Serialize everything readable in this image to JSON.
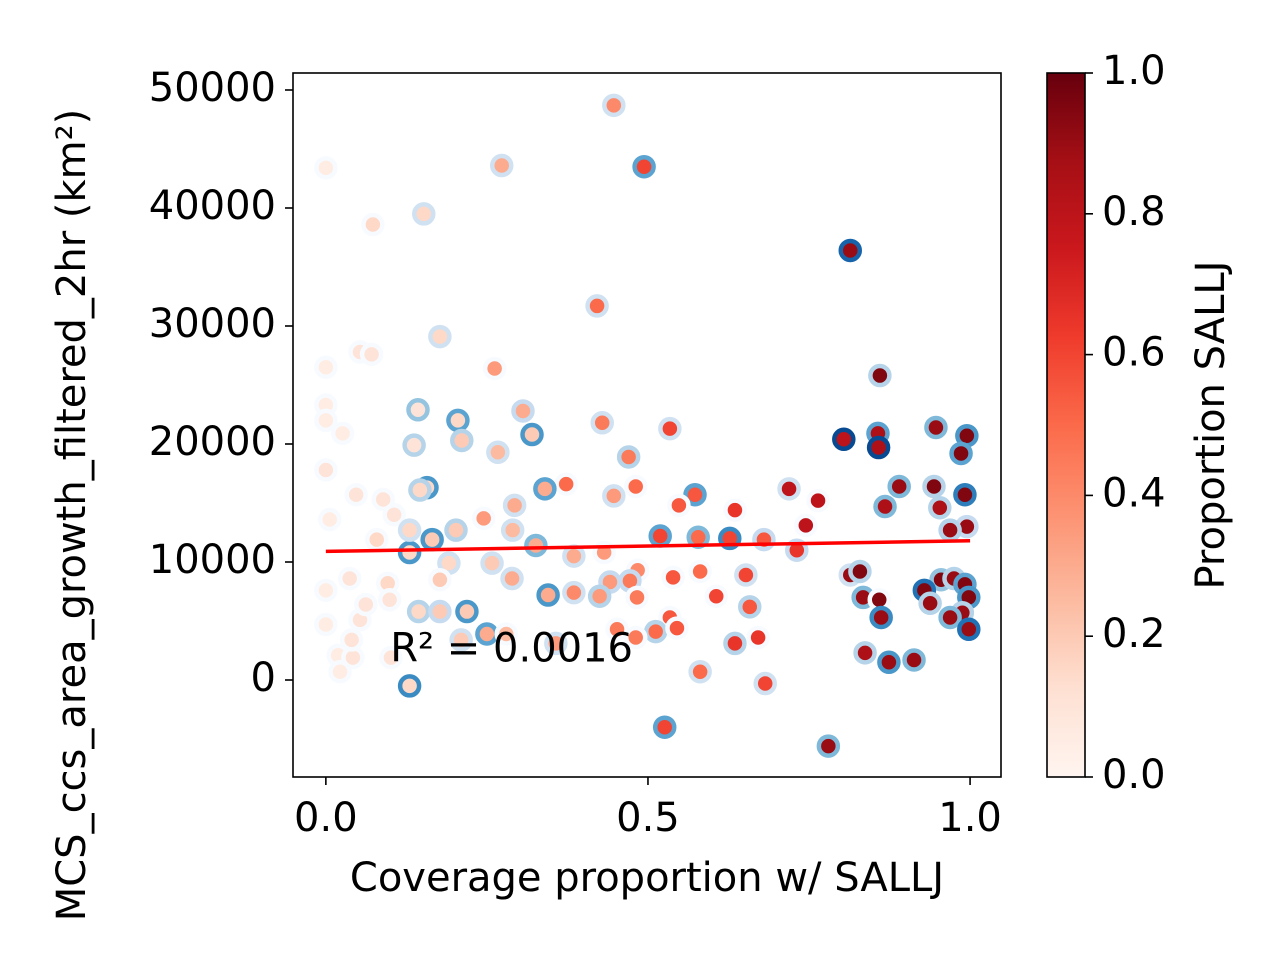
{
  "chart_data": {
    "type": "scatter",
    "x_label": "Coverage proportion w/ SALLJ",
    "y_label": "MCS_ccs_area_growth_filtered_2hr (km²)",
    "colorbar_label": "Proportion SALLJ",
    "annotation": "R² = 0.0016",
    "xlim": [
      -0.051,
      1.048
    ],
    "ylim": [
      -8220,
      51440
    ],
    "xticks": [
      {
        "value": 0,
        "label": "0.0"
      },
      0.5,
      {
        "value": 1,
        "label": "1.0"
      }
    ],
    "yticks": [
      0,
      10000,
      20000,
      30000,
      40000,
      50000
    ],
    "clim": [
      0,
      1
    ],
    "cticks": [
      {
        "value": 0,
        "label": "0.0"
      },
      0.2,
      0.4,
      0.6,
      0.8,
      {
        "value": 1,
        "label": "1.0"
      }
    ],
    "colormap": [
      "#fff5f0",
      "#fee0d2",
      "#fcbba1",
      "#fc9272",
      "#fb6a4a",
      "#ef3b2c",
      "#cb181d",
      "#a50f15",
      "#67000d"
    ],
    "edge_colormap": [
      "#f7fbff",
      "#deebf7",
      "#c6dbef",
      "#9ecae1",
      "#6baed6",
      "#4292c6",
      "#2171b5",
      "#08519c",
      "#08306b"
    ],
    "trend": {
      "x": [
        0,
        1
      ],
      "y": [
        10900,
        11800
      ],
      "color": "#ff0000"
    },
    "x": [
      0.447,
      0.494,
      0.273,
      0,
      0.152,
      0.073,
      0.814,
      0.421,
      0.177,
      0.053,
      0.071,
      0.262,
      0,
      0.86,
      0,
      0.143,
      0.306,
      0.205,
      0.429,
      0.947,
      0.534,
      0.32,
      0.995,
      0.857,
      0.804,
      0.211,
      0.137,
      0.858,
      0.986,
      0.267,
      0.47,
      0,
      0.373,
      0.719,
      0.89,
      0.157,
      0.481,
      0.34,
      0.944,
      0.992,
      0.573,
      0.447,
      0.764,
      0.953,
      0.868,
      0.293,
      0.548,
      0.635,
      0.245,
      0.745,
      0.995,
      0.969,
      0.29,
      0.519,
      0.627,
      0.578,
      0.165,
      0.68,
      0.326,
      0.731,
      0.13,
      0.385,
      0.432,
      0.191,
      0.258,
      0.484,
      0.581,
      0.814,
      0.652,
      0.829,
      0.289,
      0.539,
      0.441,
      0.472,
      0.955,
      0.975,
      0.992,
      0,
      0.929,
      0.345,
      0.385,
      0.425,
      0.606,
      0.834,
      0.998,
      0.859,
      0.938,
      0.483,
      0.144,
      0.177,
      0.219,
      0.658,
      0.534,
      0.988,
      0.862,
      0.969,
      0.452,
      0.512,
      0.545,
      0.998,
      0.25,
      0.481,
      0.28,
      0.635,
      0.671,
      0.21,
      0.357,
      0.837,
      0.874,
      0.913,
      0.019,
      0.101,
      0.581,
      0.682,
      0.13,
      0.526,
      0.78,
      0.053,
      0.042,
      0.022,
      0.006,
      0.047,
      0.089,
      0.106,
      0.079,
      0.037,
      0.062,
      0.096,
      0,
      0.026,
      0,
      0.177,
      0.202,
      0.13,
      0.099,
      0.04,
      0.146
    ],
    "y": [
      48700,
      43500,
      43600,
      43400,
      39500,
      38600,
      36400,
      31700,
      29100,
      27800,
      27600,
      26400,
      26500,
      25800,
      23300,
      22900,
      22800,
      22000,
      21800,
      21400,
      21300,
      20800,
      20700,
      20900,
      20400,
      20300,
      19900,
      19700,
      19200,
      19300,
      18900,
      17800,
      16600,
      16200,
      16400,
      16300,
      16400,
      16200,
      16400,
      15700,
      15700,
      15600,
      15200,
      14600,
      14700,
      14800,
      14800,
      14400,
      13700,
      13100,
      13000,
      12700,
      12700,
      12200,
      12000,
      12100,
      11900,
      11900,
      11400,
      11000,
      10800,
      10500,
      10800,
      9900,
      9900,
      9300,
      9200,
      8900,
      8900,
      9200,
      8600,
      8700,
      8300,
      8400,
      8500,
      8600,
      8100,
      7600,
      7600,
      7200,
      7400,
      7100,
      7100,
      7000,
      7000,
      6800,
      6500,
      7000,
      5800,
      5800,
      5800,
      6200,
      5300,
      5700,
      5300,
      5300,
      4300,
      4100,
      4400,
      4300,
      3900,
      3600,
      3900,
      3100,
      3600,
      3400,
      3100,
      2300,
      1500,
      1700,
      2100,
      1900,
      700,
      -300,
      -500,
      -4000,
      -5600,
      5100,
      1900,
      700,
      13600,
      15700,
      15300,
      14000,
      11900,
      8600,
      6400,
      8200,
      4700,
      20900,
      22000,
      8500,
      12700,
      12700,
      6800,
      3400,
      16100
    ],
    "color_values": [
      0.4,
      0.6,
      0.3,
      0.05,
      0.15,
      0.15,
      0.9,
      0.5,
      0.15,
      0.1,
      0.1,
      0.35,
      0.05,
      0.95,
      0.05,
      0.1,
      0.3,
      0.15,
      0.45,
      0.9,
      0.6,
      0.2,
      0.95,
      0.85,
      0.8,
      0.2,
      0.1,
      0.85,
      0.95,
      0.25,
      0.45,
      0.1,
      0.5,
      0.8,
      0.9,
      0.15,
      0.5,
      0.3,
      0.95,
      0.95,
      0.55,
      0.35,
      0.8,
      0.85,
      0.85,
      0.3,
      0.55,
      0.65,
      0.35,
      0.8,
      0.9,
      0.9,
      0.25,
      0.6,
      0.6,
      0.5,
      0.2,
      0.55,
      0.3,
      0.65,
      0.15,
      0.3,
      0.35,
      0.15,
      0.2,
      0.4,
      0.5,
      0.9,
      0.6,
      0.95,
      0.3,
      0.55,
      0.35,
      0.45,
      0.95,
      0.9,
      0.95,
      0.05,
      0.95,
      0.3,
      0.4,
      0.35,
      0.6,
      0.9,
      0.95,
      0.95,
      0.9,
      0.45,
      0.15,
      0.2,
      0.2,
      0.55,
      0.55,
      0.9,
      0.9,
      0.9,
      0.45,
      0.5,
      0.55,
      0.9,
      0.3,
      0.45,
      0.25,
      0.65,
      0.65,
      0.2,
      0.35,
      0.85,
      0.9,
      0.9,
      0.05,
      0.1,
      0.5,
      0.6,
      0.15,
      0.6,
      0.9,
      0.1,
      0.1,
      0.05,
      0.05,
      0.1,
      0.1,
      0.1,
      0.15,
      0.1,
      0.1,
      0.15,
      0.05,
      0.05,
      0.05,
      0.2,
      0.2,
      0.15,
      0.1,
      0.1,
      0.15
    ],
    "edge_values": [
      0.2,
      0.55,
      0.2,
      0,
      0.2,
      0,
      0.8,
      0.2,
      0.2,
      0,
      0,
      0,
      0,
      0.3,
      0,
      0.4,
      0.25,
      0.55,
      0.2,
      0.45,
      0.2,
      0.6,
      0.6,
      0.55,
      0.9,
      0.3,
      0.3,
      0.9,
      0.55,
      0.2,
      0.3,
      0,
      0,
      0.2,
      0.45,
      0.6,
      0,
      0.55,
      0.3,
      0.7,
      0.55,
      0.2,
      0,
      0.3,
      0.45,
      0.2,
      0,
      0,
      0,
      0,
      0.25,
      0.3,
      0.2,
      0.55,
      0.65,
      0.45,
      0.6,
      0.25,
      0.45,
      0.25,
      0.6,
      0.2,
      0,
      0.2,
      0.2,
      0,
      0,
      0.2,
      0.2,
      0.3,
      0.2,
      0,
      0.25,
      0.25,
      0.4,
      0.3,
      0.55,
      0,
      0.75,
      0.6,
      0.2,
      0.3,
      0,
      0.45,
      0.6,
      0,
      0.3,
      0,
      0.3,
      0.25,
      0.6,
      0.3,
      0,
      0.3,
      0.65,
      0.45,
      0,
      0.3,
      0,
      0.75,
      0.55,
      0,
      0,
      0.3,
      0,
      0.2,
      0.2,
      0.3,
      0.6,
      0.45,
      0,
      0,
      0.2,
      0.2,
      0.65,
      0.55,
      0.45,
      0,
      0,
      0,
      0,
      0,
      0,
      0,
      0,
      0,
      0,
      0,
      0,
      0,
      0,
      0,
      0.3,
      0.2,
      0,
      0,
      0.3
    ]
  }
}
